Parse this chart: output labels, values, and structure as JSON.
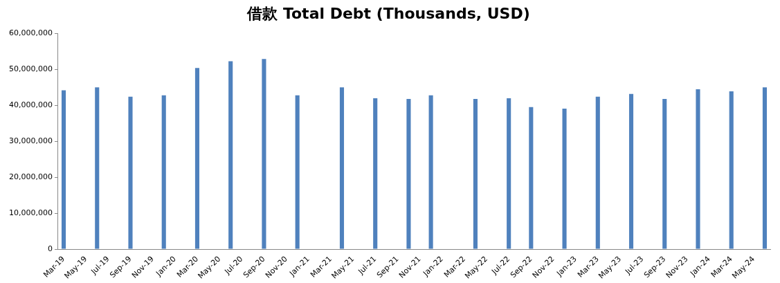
{
  "chart_data": {
    "type": "bar",
    "title": "借款 Total Debt (Thousands, USD)",
    "categories": [
      "Mar-19",
      null,
      "May-19",
      null,
      "Jul-19",
      null,
      "Sep-19",
      null,
      "Nov-19",
      null,
      "Jan-20",
      null,
      "Mar-20",
      null,
      "May-20",
      null,
      "Jul-20",
      null,
      "Sep-20",
      null,
      "Nov-20",
      null,
      "Jan-21",
      null,
      "Mar-21",
      null,
      "May-21",
      null,
      "Jul-21",
      null,
      "Sep-21",
      null,
      "Nov-21",
      null,
      "Jan-22",
      null,
      "Mar-22",
      null,
      "May-22",
      null,
      "Jul-22",
      null,
      "Sep-22",
      null,
      "Nov-22",
      null,
      "Jan-23",
      null,
      "Mar-23",
      null,
      "May-23",
      null,
      "Jul-23",
      null,
      "Sep-23",
      null,
      "Nov-23",
      null,
      "Jan-24",
      null,
      "Mar-24",
      null,
      "May-24",
      null
    ],
    "values": [
      44200000,
      null,
      null,
      45000000,
      null,
      null,
      42400000,
      null,
      null,
      42800000,
      null,
      null,
      50400000,
      null,
      null,
      52300000,
      null,
      null,
      52900000,
      null,
      null,
      42800000,
      null,
      null,
      null,
      45000000,
      null,
      null,
      42000000,
      null,
      null,
      41800000,
      null,
      42800000,
      null,
      null,
      null,
      41800000,
      null,
      null,
      42000000,
      null,
      39500000,
      null,
      null,
      39100000,
      null,
      null,
      42400000,
      null,
      null,
      43200000,
      null,
      null,
      41800000,
      null,
      null,
      44500000,
      null,
      null,
      43900000,
      null,
      null,
      45000000
    ],
    "color": "#4f81bd",
    "ylim": [
      0,
      60000000
    ],
    "yticks": [
      0,
      {
        "value": 10000000,
        "label": "10,000,000"
      },
      {
        "value": 20000000,
        "label": "20,000,000"
      },
      {
        "value": 30000000,
        "label": "30,000,000"
      },
      {
        "value": 40000000,
        "label": "40,000,000"
      },
      {
        "value": 50000000,
        "label": "50,000,000"
      },
      {
        "value": 60000000,
        "label": "60,000,000"
      }
    ],
    "grid": false,
    "legend": false
  }
}
